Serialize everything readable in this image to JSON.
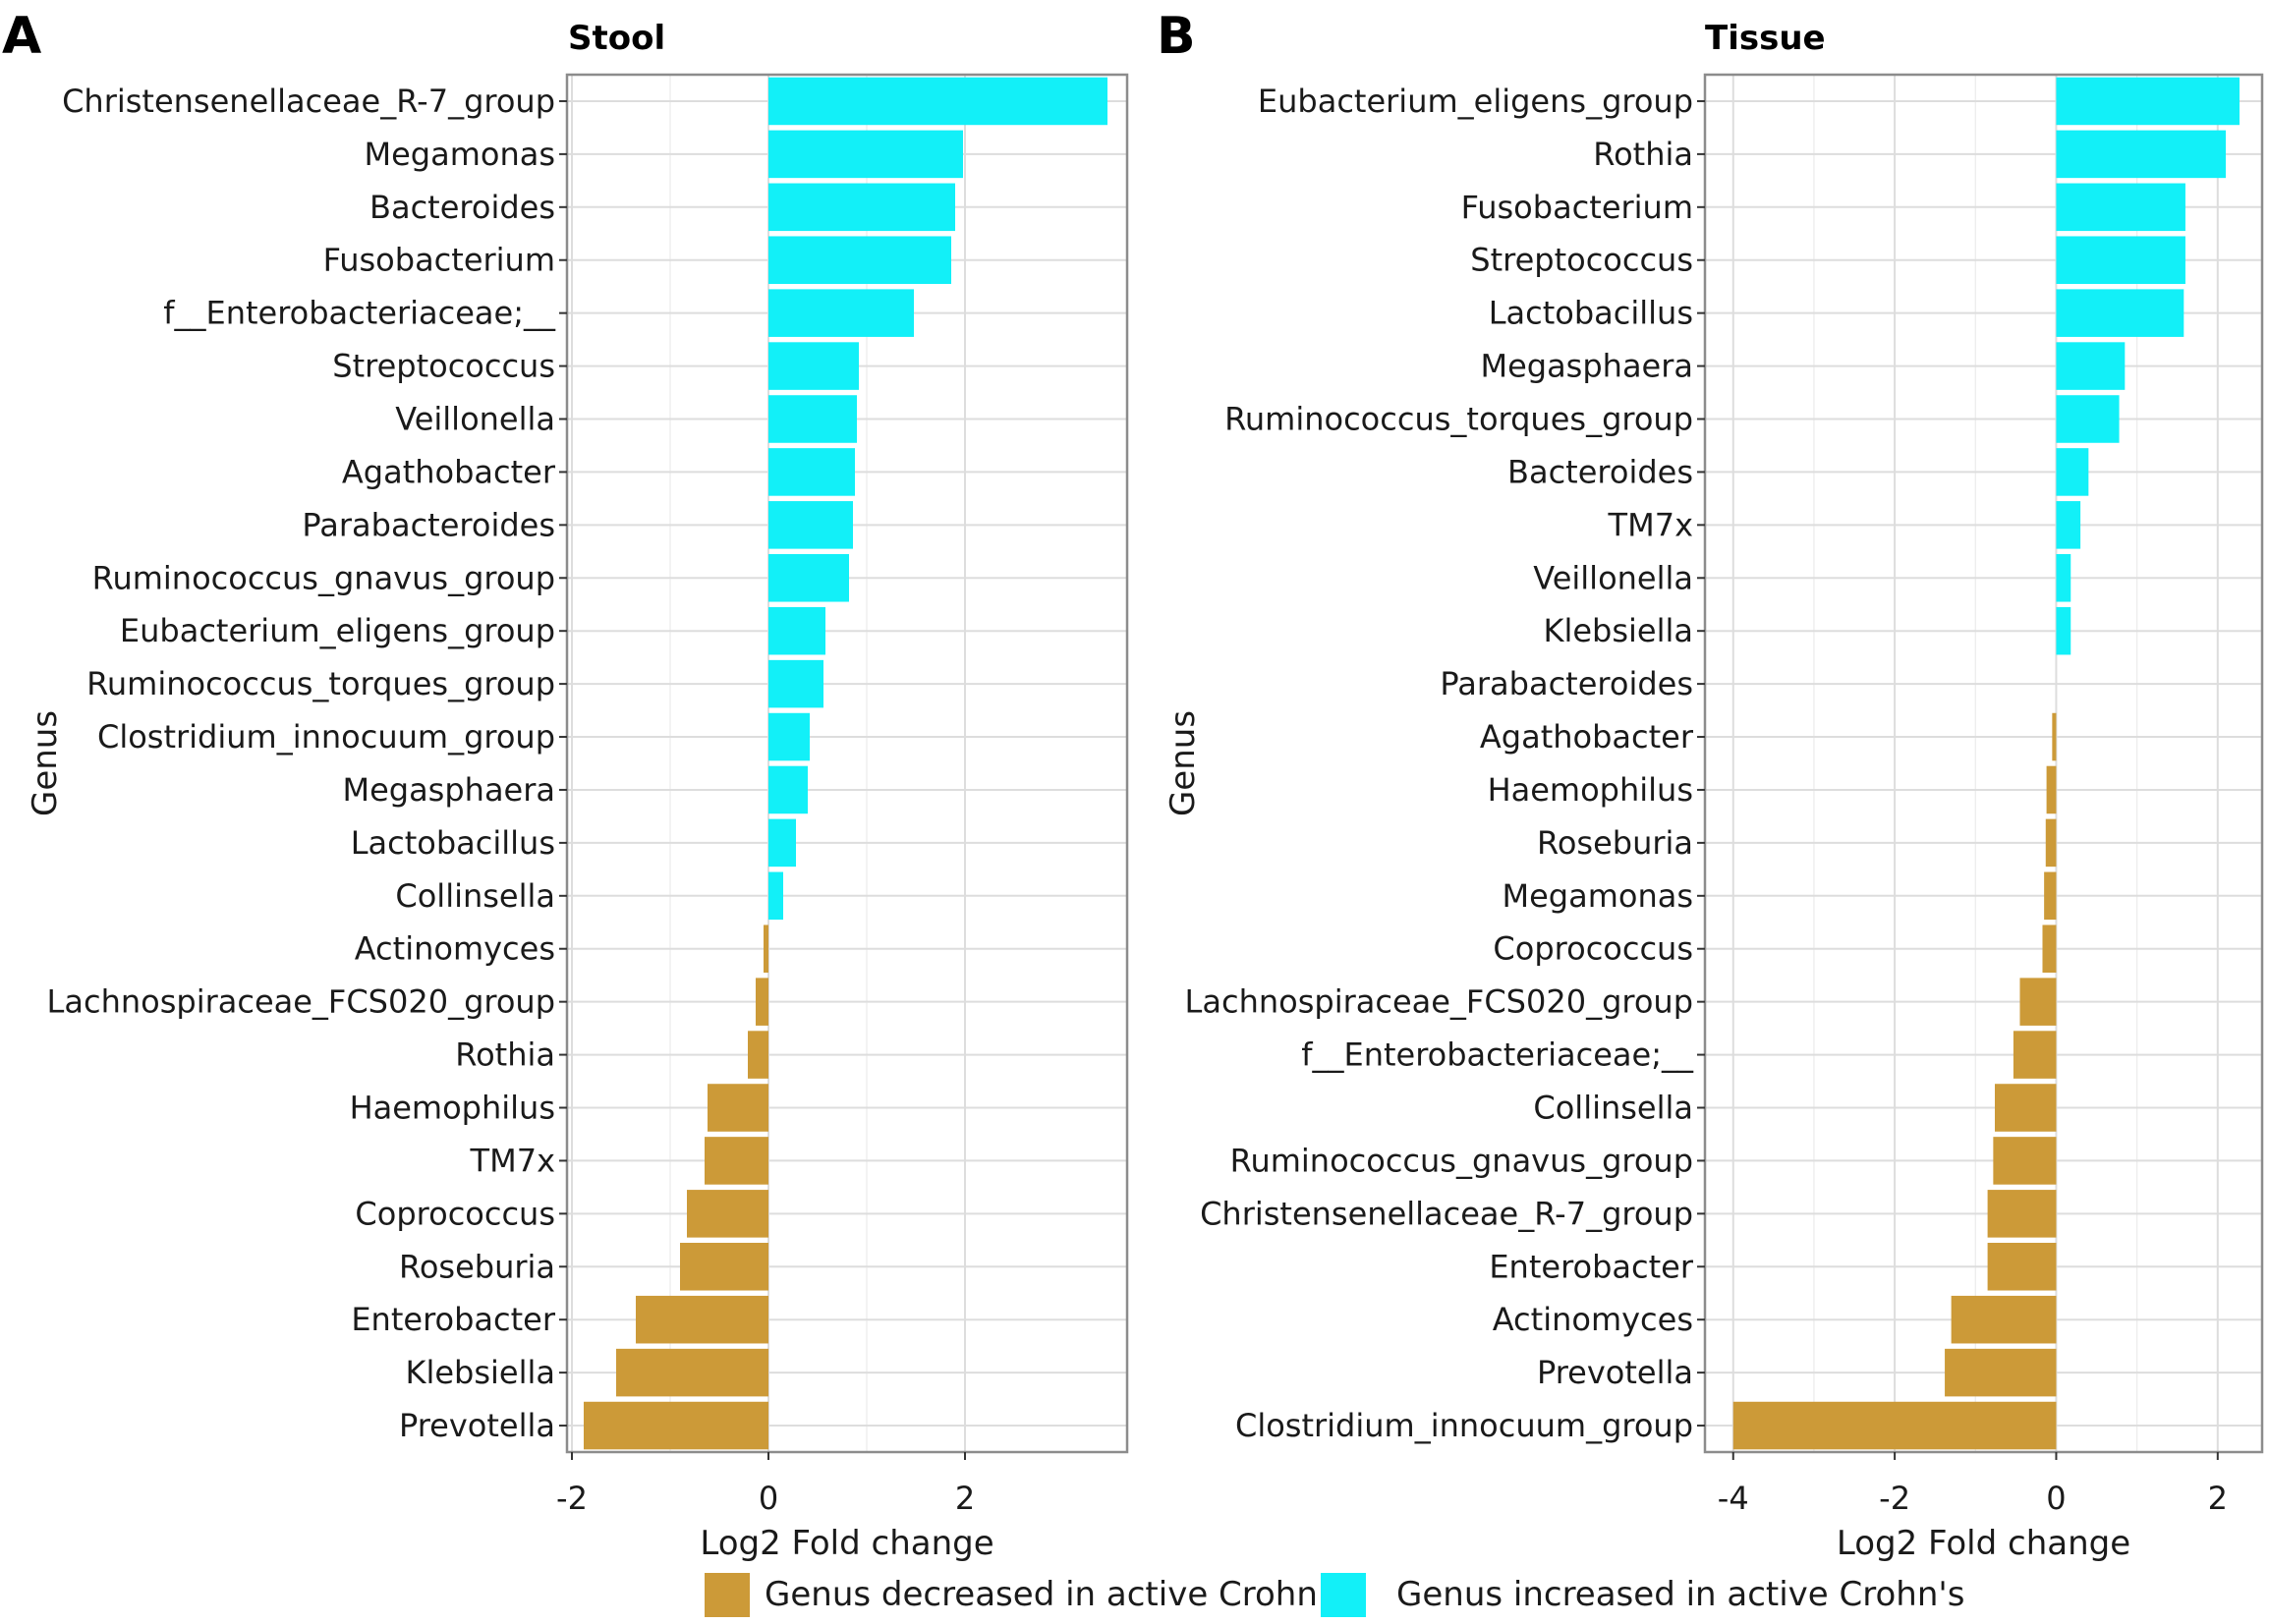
{
  "colors": {
    "decreased": "#CC9A38",
    "increased": "#12F0F8",
    "grid": "#DDDDDD",
    "frame": "#8C8C8C"
  },
  "legend": {
    "items": [
      {
        "key": "decreased",
        "label": "Genus decreased in active Crohn's"
      },
      {
        "key": "increased",
        "label": "Genus increased in active Crohn's"
      }
    ],
    "position": "bottom"
  },
  "chart_data": [
    {
      "type": "bar",
      "orientation": "horizontal",
      "panel_letter": "A",
      "title": "Stool",
      "xlabel": "Log2 Fold change",
      "ylabel": "Genus",
      "xlim": [
        -2.05,
        3.65
      ],
      "xticks": [
        -2,
        0,
        2
      ],
      "grid": true,
      "categories": [
        "Christensenellaceae_R-7_group",
        "Megamonas",
        "Bacteroides",
        "Fusobacterium",
        "f__Enterobacteriaceae;__",
        "Streptococcus",
        "Veillonella",
        "Agathobacter",
        "Parabacteroides",
        "Ruminococcus_gnavus_group",
        "Eubacterium_eligens_group",
        "Ruminococcus_torques_group",
        "Clostridium_innocuum_group",
        "Megasphaera",
        "Lactobacillus",
        "Collinsella",
        "Actinomyces",
        "Lachnospiraceae_FCS020_group",
        "Rothia",
        "Haemophilus",
        "TM7x",
        "Coprococcus",
        "Roseburia",
        "Enterobacter",
        "Klebsiella",
        "Prevotella"
      ],
      "values": [
        3.45,
        1.98,
        1.9,
        1.86,
        1.48,
        0.92,
        0.9,
        0.88,
        0.86,
        0.82,
        0.58,
        0.56,
        0.42,
        0.4,
        0.28,
        0.15,
        -0.05,
        -0.13,
        -0.21,
        -0.62,
        -0.65,
        -0.83,
        -0.9,
        -1.35,
        -1.55,
        -1.88
      ]
    },
    {
      "type": "bar",
      "orientation": "horizontal",
      "panel_letter": "B",
      "title": "Tissue",
      "xlabel": "Log2 Fold change",
      "ylabel": "Genus",
      "xlim": [
        -4.35,
        2.55
      ],
      "xticks": [
        -4,
        -2,
        0,
        2
      ],
      "grid": true,
      "categories": [
        "Eubacterium_eligens_group",
        "Rothia",
        "Fusobacterium",
        "Streptococcus",
        "Lactobacillus",
        "Megasphaera",
        "Ruminococcus_torques_group",
        "Bacteroides",
        "TM7x",
        "Veillonella",
        "Klebsiella",
        "Parabacteroides",
        "Agathobacter",
        "Haemophilus",
        "Roseburia",
        "Megamonas",
        "Coprococcus",
        "Lachnospiraceae_FCS020_group",
        "f__Enterobacteriaceae;__",
        "Collinsella",
        "Ruminococcus_gnavus_group",
        "Christensenellaceae_R-7_group",
        "Enterobacter",
        "Actinomyces",
        "Prevotella",
        "Clostridium_innocuum_group"
      ],
      "values": [
        2.27,
        2.1,
        1.6,
        1.6,
        1.58,
        0.85,
        0.78,
        0.4,
        0.3,
        0.18,
        0.18,
        0.0,
        -0.05,
        -0.12,
        -0.13,
        -0.15,
        -0.17,
        -0.45,
        -0.53,
        -0.76,
        -0.78,
        -0.85,
        -0.85,
        -1.3,
        -1.38,
        -4.0
      ]
    }
  ]
}
